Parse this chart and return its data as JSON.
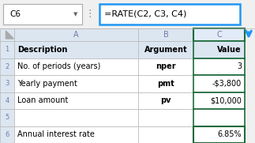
{
  "formula_box_text": "=RATE(C2, C3, C4)",
  "name_box_text": "C6",
  "col_headers": [
    "A",
    "B",
    "C"
  ],
  "rows": [
    [
      "Description",
      "Argument",
      "Value"
    ],
    [
      "No. of periods (years)",
      "nper",
      "3"
    ],
    [
      "Yearly payment",
      "pmt",
      "-$3,800"
    ],
    [
      "Loan amount",
      "pv",
      "$10,000"
    ],
    [
      "",
      "",
      ""
    ],
    [
      "Annual interest rate",
      "",
      "6.85%"
    ]
  ],
  "header_bg": "#dce6f1",
  "selected_col_bg": "#e2ecf8",
  "highlight_cell_border": "#1e6b3c",
  "formula_bar_border": "#2196f3",
  "arrow_color": "#2196f3",
  "grid_color": "#b8b8b8",
  "header_text_color": "#7878a8",
  "fig_bg": "#f0f0f0",
  "cell_bg_white": "#ffffff",
  "name_box_bg": "#ffffff",
  "formula_bar_bg": "#ffffff",
  "top_bar_bg": "#f0f0f0"
}
